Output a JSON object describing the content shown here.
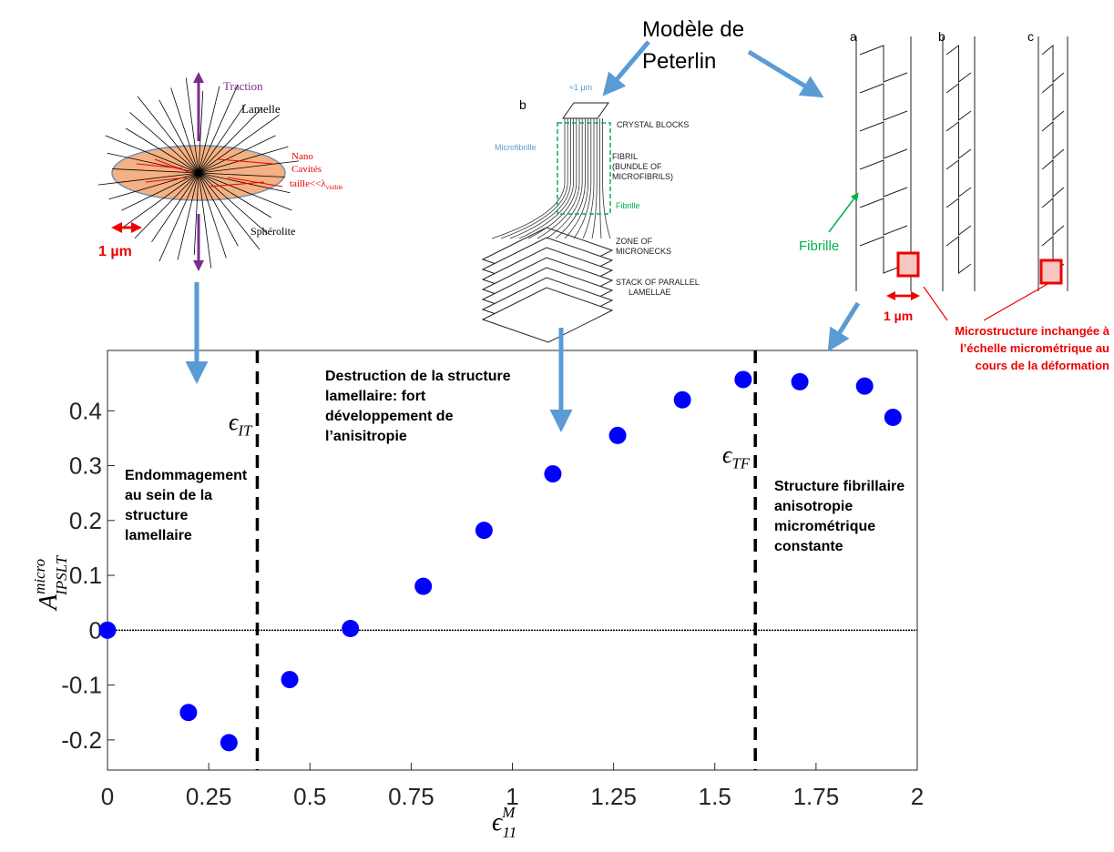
{
  "chart_data": {
    "type": "scatter",
    "x": [
      0,
      0.2,
      0.3,
      0.45,
      0.6,
      0.78,
      0.93,
      1.1,
      1.26,
      1.42,
      1.57,
      1.71,
      1.87,
      1.94
    ],
    "values": [
      0,
      -0.15,
      -0.205,
      -0.09,
      0.003,
      0.08,
      0.182,
      0.285,
      0.355,
      0.42,
      0.457,
      0.453,
      0.445,
      0.388
    ],
    "color": "#0000ff",
    "xlim": [
      0,
      2
    ],
    "xticks": [
      0,
      0.25,
      0.5,
      0.75,
      1,
      1.25,
      1.5,
      1.75,
      2
    ],
    "ylim": [
      -0.255,
      0.51
    ],
    "yticks": [
      -0.2,
      -0.1,
      0,
      0.1,
      0.2,
      0.3,
      0.4
    ],
    "zero_line": 0,
    "xlabel": {
      "symbol": "ϵ",
      "subscript": "11",
      "superscript": "M"
    },
    "ylabel": {
      "symbol": "A",
      "subscript": "IPSLT",
      "superscript": "micro"
    },
    "vlines": [
      {
        "x": 0.37,
        "symbol": "ϵ",
        "subscript": "IT"
      },
      {
        "x": 1.6,
        "symbol": "ϵ",
        "subscript": "TF"
      }
    ],
    "annotations": [
      [
        "Endommagement",
        "au sein de la",
        "structure",
        "lamellaire"
      ],
      [
        "Destruction de la structure",
        "lamellaire: fort",
        "développement de",
        "l’anisitropie"
      ],
      [
        "Structure fibrillaire",
        "anisotropie",
        "micrométrique",
        "constante"
      ]
    ]
  },
  "illustrations": {
    "spherulite": {
      "traction": "Traction",
      "lamelle": "Lamelle",
      "cavities": [
        "Nano",
        "Cavités",
        "taille<<λ",
        "visible"
      ],
      "spherolite": "Sphérolite",
      "scale": "1 µm"
    },
    "peterlin": {
      "title": [
        "Modèle de",
        "Peterlin"
      ],
      "panel": "b",
      "scale": "≈1 µm",
      "microfibrille": "Microfibrille",
      "fibrille": "Fibrille",
      "labels": [
        "CRYSTAL  BLOCKS",
        "FIBRIL",
        "(BUNDLE  OF",
        "MICROFIBRILS)",
        "ZONE  OF",
        "MICRONECKS",
        "STACK  OF  PARALLEL",
        "LAMELLAE"
      ]
    },
    "fibrils": {
      "panels": [
        "a",
        "b",
        "c"
      ],
      "fibrille": "Fibrille",
      "scale": "1 µm",
      "note": [
        "Microstructure inchangée à",
        "l’échelle micrométrique au",
        "cours de la déformation"
      ]
    }
  }
}
